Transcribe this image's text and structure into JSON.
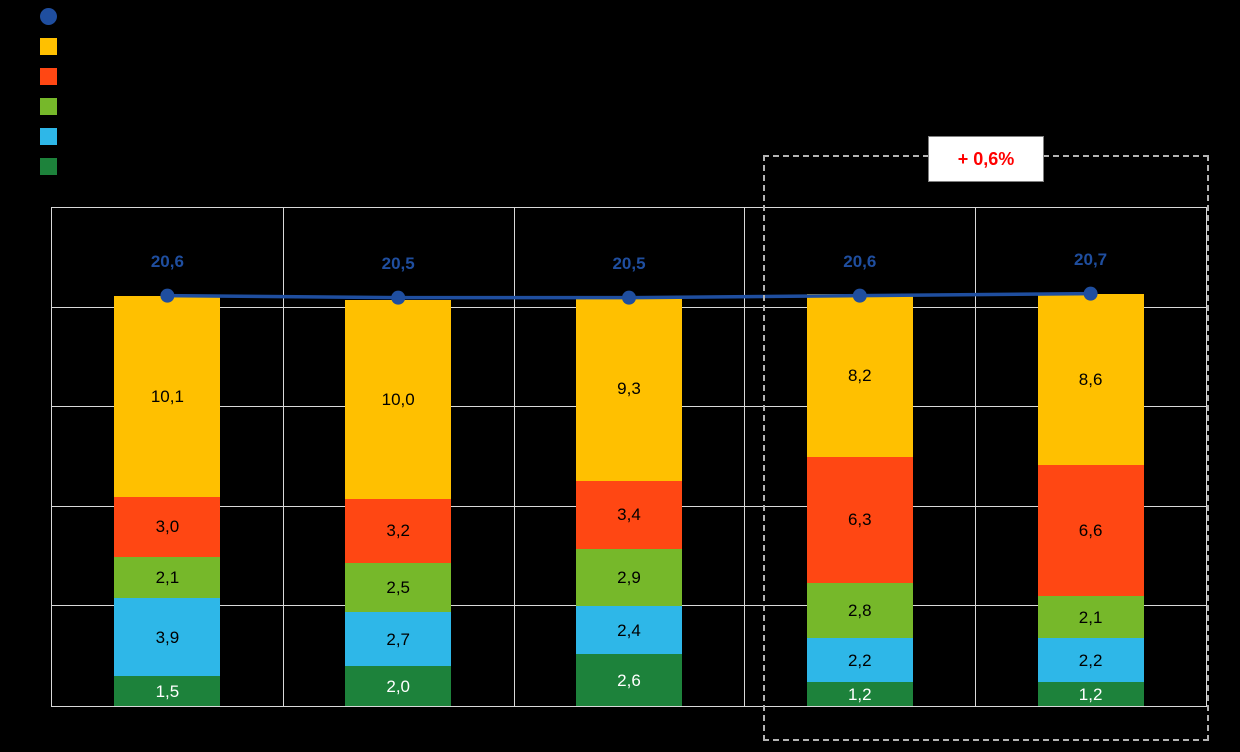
{
  "legend": {
    "items": [
      {
        "name": "total-line",
        "shape": "circle",
        "color": "#1F4E9F",
        "label": ""
      },
      {
        "name": "series-yellow",
        "shape": "square",
        "color": "#FFC000",
        "label": ""
      },
      {
        "name": "series-orange",
        "shape": "square",
        "color": "#FF4713",
        "label": ""
      },
      {
        "name": "series-green",
        "shape": "square",
        "color": "#76B82A",
        "label": ""
      },
      {
        "name": "series-lightblue",
        "shape": "square",
        "color": "#2EB7E8",
        "label": ""
      },
      {
        "name": "series-darkgreen",
        "shape": "square",
        "color": "#1D823B",
        "label": ""
      }
    ]
  },
  "chart_data": {
    "type": "bar",
    "subtype": "stacked-bar-with-total-line",
    "categories": [
      "",
      "",
      "",
      "",
      ""
    ],
    "ylim": [
      0,
      25
    ],
    "y_gridline_step": 5,
    "grid": true,
    "legend_position": "top-left",
    "decimal_separator": ",",
    "series": [
      {
        "name": "dark-green",
        "color": "#1D823B",
        "label_color": "#FFFFFF",
        "values": [
          1.5,
          2.0,
          2.6,
          1.2,
          1.2
        ],
        "labels": [
          "1,5",
          "2,0",
          "2,6",
          "1,2",
          "1,2"
        ]
      },
      {
        "name": "light-blue",
        "color": "#2EB7E8",
        "label_color": "#000000",
        "values": [
          3.9,
          2.7,
          2.4,
          2.2,
          2.2
        ],
        "labels": [
          "3,9",
          "2,7",
          "2,4",
          "2,2",
          "2,2"
        ]
      },
      {
        "name": "green",
        "color": "#76B82A",
        "label_color": "#000000",
        "values": [
          2.1,
          2.5,
          2.9,
          2.8,
          2.1
        ],
        "labels": [
          "2,1",
          "2,5",
          "2,9",
          "2,8",
          "2,1"
        ]
      },
      {
        "name": "orange-red",
        "color": "#FF4713",
        "label_color": "#000000",
        "values": [
          3.0,
          3.2,
          3.4,
          6.3,
          6.6
        ],
        "labels": [
          "3,0",
          "3,2",
          "3,4",
          "6,3",
          "6,6"
        ]
      },
      {
        "name": "yellow",
        "color": "#FFC000",
        "label_color": "#000000",
        "values": [
          10.1,
          10.0,
          9.3,
          8.2,
          8.6
        ],
        "labels": [
          "10,1",
          "10,0",
          "9,3",
          "8,2",
          "8,6"
        ]
      }
    ],
    "line": {
      "name": "total-line",
      "color": "#1F4E9F",
      "values": [
        20.6,
        20.5,
        20.5,
        20.6,
        20.7
      ],
      "labels": [
        "20,6",
        "20,5",
        "20,5",
        "20,6",
        "20,7"
      ]
    },
    "annotation": {
      "text": "+ 0,6%",
      "text_color": "#FF0000",
      "applies_to_categories": [
        4,
        5
      ]
    }
  },
  "colors": {
    "background": "#000000",
    "gridline": "#D9D9D9",
    "plot_border": "#D9D9D9",
    "highlight_box_border": "#B3B3B3",
    "annotation_background": "#FFFFFF",
    "annotation_border": "#7F7F7F"
  }
}
